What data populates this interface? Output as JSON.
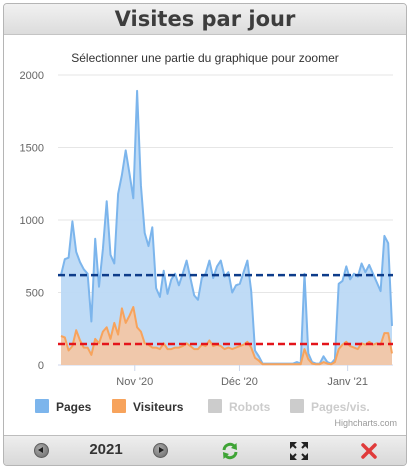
{
  "window": {
    "title": "Visites par jour"
  },
  "chart": {
    "subtitle": "Sélectionner une partie du graphique pour zoomer",
    "credits": "Highcharts.com",
    "colors": {
      "pages": "#7cb5ec",
      "pages_fill": "#bcd9f5",
      "visiteurs": "#f7a35c",
      "visiteurs_fill": "#f2c7a6",
      "legend_disabled": "#cccccc",
      "avg_pages_line": "#0d3c8a",
      "avg_visiteurs_line": "#e4141b"
    }
  },
  "chart_data": {
    "type": "area",
    "y_ticks": [
      "0",
      "500",
      "1000",
      "1500",
      "2000"
    ],
    "x_ticks": [
      "Nov '20",
      "Déc '20",
      "Janv '21"
    ],
    "ylim": [
      0,
      2000
    ],
    "x_start": "2020-10-10",
    "x_end": "2021-01-14",
    "series": [
      {
        "name": "Pages",
        "values": [
          620,
          730,
          740,
          990,
          780,
          710,
          660,
          630,
          300,
          870,
          540,
          800,
          1130,
          760,
          700,
          1180,
          1310,
          1480,
          1320,
          1150,
          1890,
          1240,
          910,
          820,
          950,
          530,
          470,
          650,
          490,
          590,
          630,
          550,
          630,
          720,
          600,
          480,
          450,
          600,
          630,
          720,
          600,
          680,
          720,
          610,
          640,
          500,
          550,
          560,
          640,
          720,
          510,
          100,
          60,
          10,
          10,
          10,
          10,
          10,
          10,
          10,
          10,
          10,
          20,
          10,
          630,
          80,
          20,
          10,
          10,
          60,
          20,
          10,
          40,
          560,
          580,
          680,
          590,
          630,
          610,
          700,
          640,
          690,
          630,
          570,
          510,
          890,
          840,
          270
        ],
        "legend_enabled": true
      },
      {
        "name": "Visiteurs",
        "values": [
          200,
          190,
          100,
          130,
          240,
          170,
          120,
          120,
          70,
          180,
          150,
          230,
          260,
          180,
          290,
          210,
          390,
          290,
          340,
          400,
          260,
          230,
          150,
          140,
          120,
          120,
          110,
          150,
          110,
          110,
          120,
          120,
          130,
          150,
          130,
          110,
          110,
          140,
          130,
          170,
          130,
          140,
          130,
          110,
          120,
          110,
          120,
          130,
          140,
          160,
          120,
          50,
          30,
          5,
          5,
          5,
          5,
          5,
          5,
          5,
          5,
          5,
          5,
          5,
          110,
          40,
          10,
          5,
          5,
          20,
          10,
          5,
          20,
          110,
          140,
          160,
          130,
          120,
          110,
          150,
          140,
          160,
          140,
          150,
          140,
          220,
          220,
          80
        ],
        "legend_enabled": true
      },
      {
        "name": "Robots",
        "legend_enabled": false
      },
      {
        "name": "Pages/vis.",
        "legend_enabled": false
      }
    ],
    "plot_lines": {
      "avg_pages": 620,
      "avg_visiteurs": 145
    }
  },
  "footer": {
    "year": "2021",
    "prev_label": "previous-year",
    "next_label": "next-year",
    "icons": [
      "refresh-icon",
      "fullscreen-icon",
      "close-icon"
    ]
  }
}
